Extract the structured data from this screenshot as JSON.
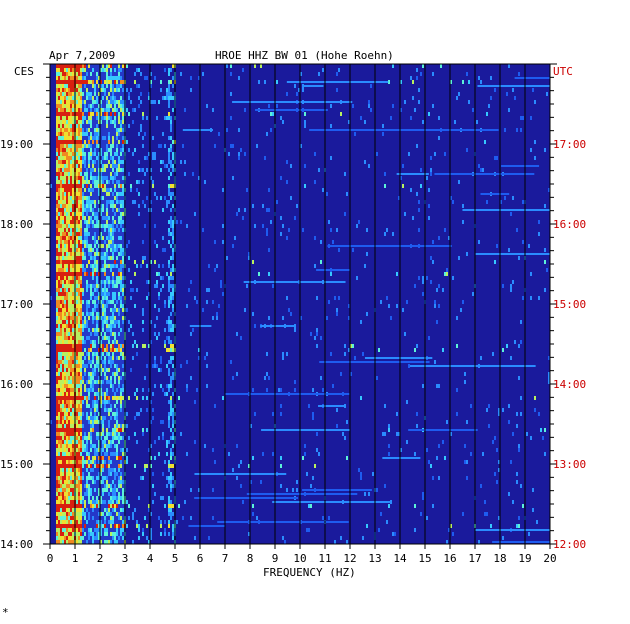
{
  "header": {
    "date": "Apr 7,2009",
    "station": "HROE HHZ BW 01 (Hohe Roehn)"
  },
  "left_axis": {
    "zone": "CES",
    "ticks": [
      "19:00",
      "18:00",
      "17:00",
      "16:00",
      "15:00",
      "14:00"
    ]
  },
  "right_axis": {
    "zone": "UTC",
    "ticks": [
      "17:00",
      "16:00",
      "15:00",
      "14:00",
      "13:00",
      "12:00"
    ]
  },
  "footer_mark": "*",
  "colors": {
    "background": "#1a1a9c",
    "grid": "#000000",
    "right_labels": "#cc0000"
  },
  "chart_data": {
    "type": "heatmap",
    "title": "HROE HHZ BW 01 (Hohe Roehn)",
    "xlabel": "FREQUENCY (HZ)",
    "x_ticks": [
      "0",
      "1",
      "2",
      "3",
      "4",
      "5",
      "6",
      "7",
      "8",
      "9",
      "10",
      "11",
      "12",
      "13",
      "14",
      "15",
      "16",
      "17",
      "18",
      "19",
      "20"
    ],
    "xlim": [
      0,
      20
    ],
    "y_left_ticks": [
      "19:00",
      "18:00",
      "17:00",
      "16:00",
      "15:00",
      "14:00"
    ],
    "y_right_ticks": [
      "17:00",
      "16:00",
      "15:00",
      "14:00",
      "13:00",
      "12:00"
    ],
    "notes_energy_bands_hz": [
      [
        0.2,
        1.2
      ],
      [
        1.5,
        3.0
      ],
      [
        4.7,
        5.0
      ]
    ]
  }
}
